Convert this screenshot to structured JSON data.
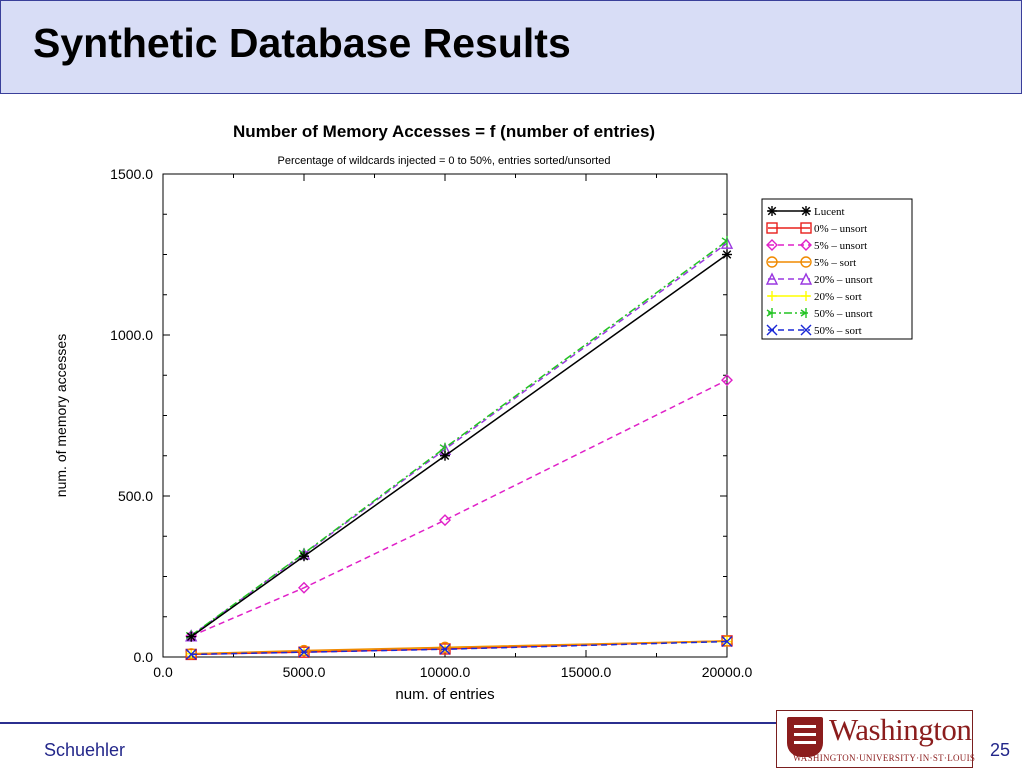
{
  "slide": {
    "title": "Synthetic Database Results",
    "author": "Schuehler",
    "page_number": "25"
  },
  "logo": {
    "name": "Washington",
    "subtitle": "WASHINGTON·UNIVERSITY·IN·ST·LOUIS",
    "color": "#8b1d1d"
  },
  "chart_data": {
    "type": "line",
    "title": "Number of Memory Accesses = f (number of entries)",
    "subtitle": "Percentage of wildcards injected = 0 to 50%, entries sorted/unsorted",
    "xlabel": "num. of entries",
    "ylabel": "num. of memory accesses",
    "xlim": [
      0,
      20000
    ],
    "ylim": [
      0,
      1500
    ],
    "x_ticks": [
      0,
      5000,
      10000,
      15000,
      20000
    ],
    "x_tick_labels": [
      "0.0",
      "5000.0",
      "10000.0",
      "15000.0",
      "20000.0"
    ],
    "y_ticks": [
      0,
      500,
      1000,
      1500
    ],
    "y_tick_labels": [
      "0.0",
      "500.0",
      "1000.0",
      "1500.0"
    ],
    "grid": false,
    "legend_position": "top-right, outside plot",
    "x": [
      1000,
      5000,
      10000,
      20000
    ],
    "series": [
      {
        "name": "Lucent",
        "values": [
          63,
          313,
          625,
          1250
        ],
        "color": "#000000",
        "dash": "solid",
        "marker": "star"
      },
      {
        "name": "0% – unsort",
        "values": [
          8,
          15,
          25,
          50
        ],
        "color": "#e8201c",
        "dash": "solid",
        "marker": "square"
      },
      {
        "name": "5% – unsort",
        "values": [
          65,
          215,
          425,
          860
        ],
        "color": "#e020c8",
        "dash": "dashed",
        "marker": "diamond"
      },
      {
        "name": "5% – sort",
        "values": [
          10,
          20,
          30,
          50
        ],
        "color": "#f08a00",
        "dash": "solid",
        "marker": "circle"
      },
      {
        "name": "20% – unsort",
        "values": [
          66,
          320,
          645,
          1285
        ],
        "color": "#9a38e0",
        "dash": "dashed",
        "marker": "triangle"
      },
      {
        "name": "20% – sort",
        "values": [
          10,
          18,
          30,
          48
        ],
        "color": "#ffff00",
        "dash": "solid",
        "marker": "plus"
      },
      {
        "name": "50% – unsort",
        "values": [
          67,
          322,
          650,
          1292
        ],
        "color": "#22c322",
        "dash": "dashdot",
        "marker": "arrow"
      },
      {
        "name": "50% – sort",
        "values": [
          8,
          15,
          24,
          48
        ],
        "color": "#1a28d6",
        "dash": "dashed",
        "marker": "x"
      }
    ]
  }
}
